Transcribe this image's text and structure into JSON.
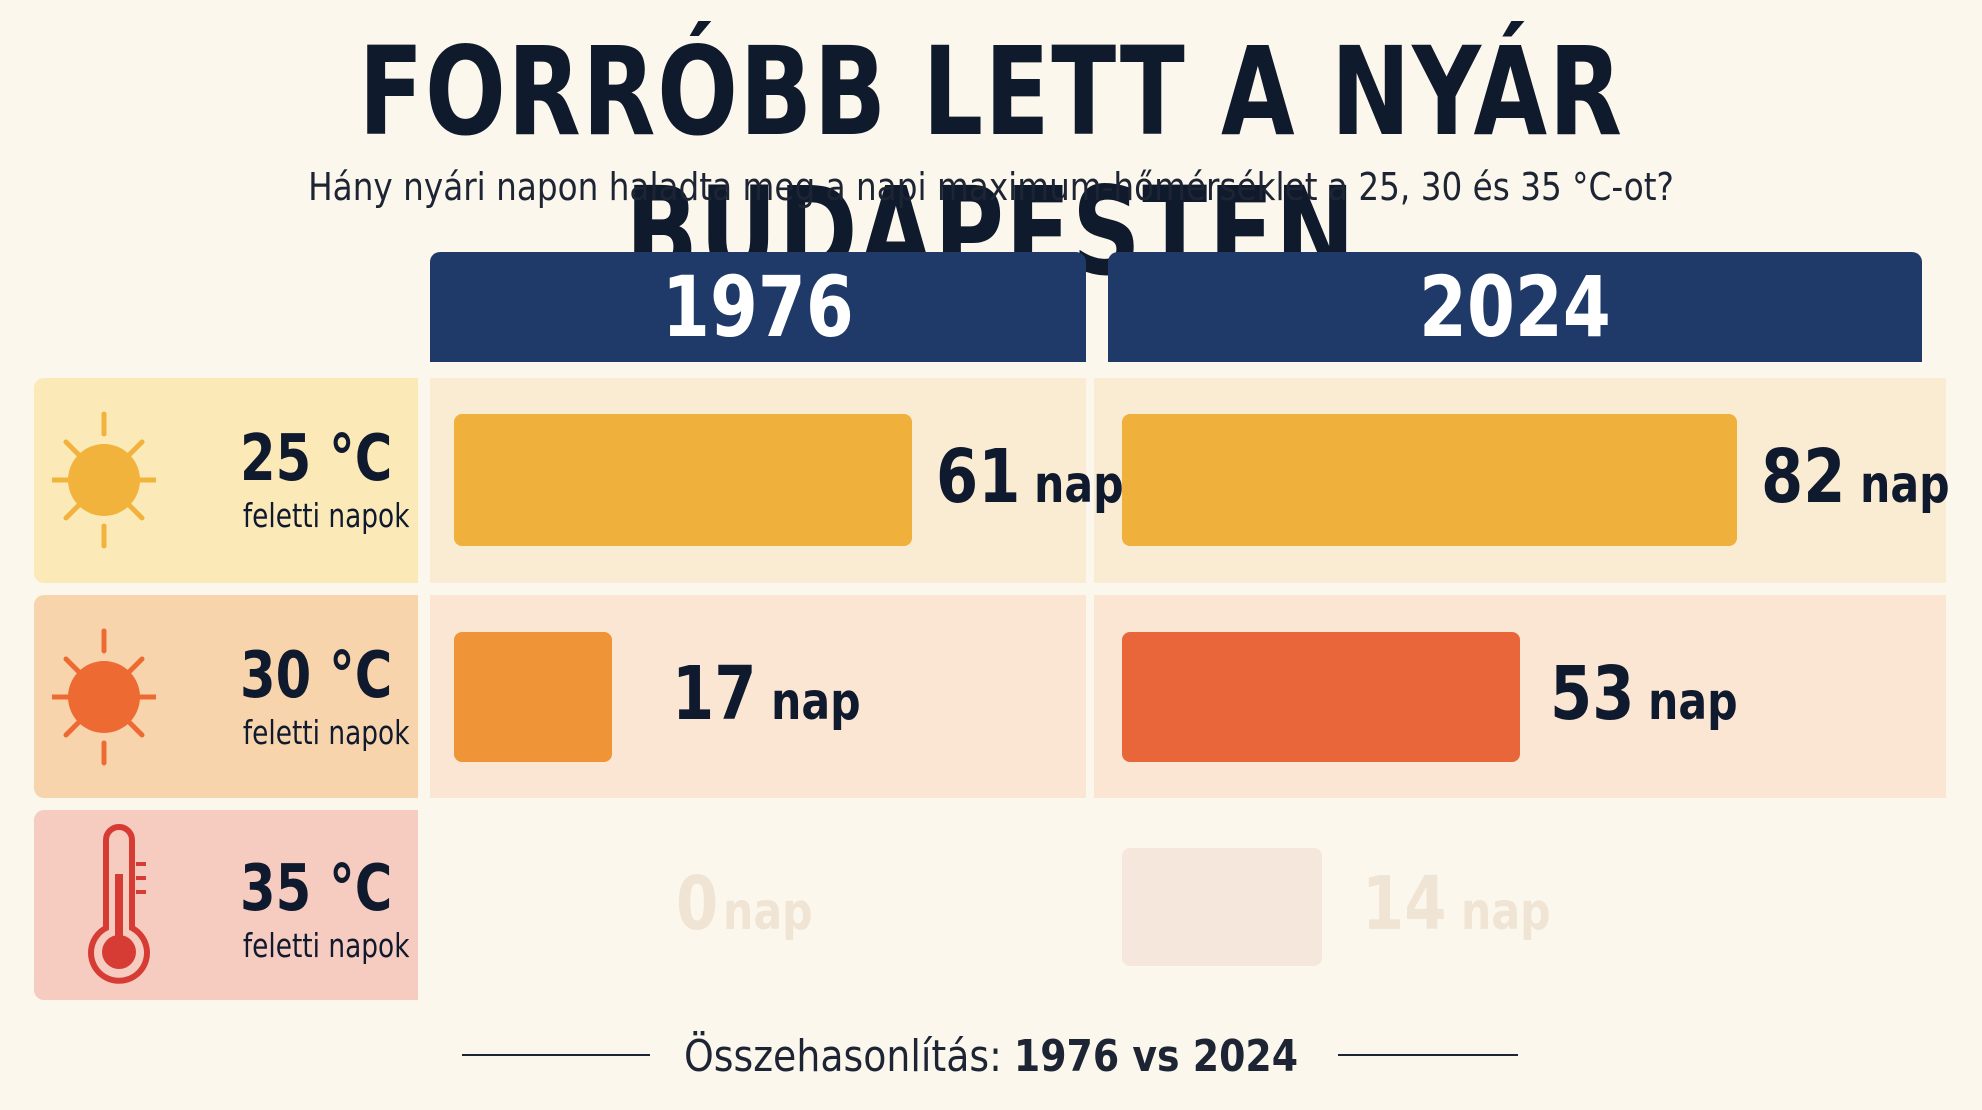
{
  "title": "FORRÓBB LETT A NYÁR BUDAPESTEN",
  "subtitle": "Hány nyári napon haladta meg a napi maximum-hőmérséklet a 25, 30 és 35 °C-ot?",
  "footer": {
    "prefix": "Összehasonlítás: ",
    "emphasis": "1976 vs 2024"
  },
  "chart_data": {
    "type": "bar",
    "title": "FORRÓBB LETT A NYÁR BUDAPESTEN",
    "subtitle": "Hány nyári napon haladta meg a napi maximum-hőmérséklet a 25, 30 és 35 °C-ot?",
    "columns": [
      "1976",
      "2024"
    ],
    "unit": "nap",
    "categories": [
      {
        "temp": "25 °C",
        "sub": "feletti napok",
        "icon": "sun-icon"
      },
      {
        "temp": "30 °C",
        "sub": "feletti napok",
        "icon": "sun-icon"
      },
      {
        "temp": "35 °C",
        "sub": "feletti napok",
        "icon": "thermometer-icon"
      }
    ],
    "series": [
      {
        "name": "1976",
        "values": [
          61,
          17,
          0
        ]
      },
      {
        "name": "2024",
        "values": [
          82,
          53,
          14
        ]
      }
    ],
    "colors": {
      "header": "#1f3a68",
      "row_25_label": "#fbe9b8",
      "row_30_label": "#f7d4ac",
      "row_35_label": "#f6cbc0",
      "bar_25": "#f0b03c",
      "bar_30_1976": "#f09438",
      "bar_30_2024": "#e8663a",
      "bar_35": "#f7ebe0",
      "sun_25": "#f2b33c",
      "sun_30": "#ed6b32",
      "thermo": "#d63c34"
    }
  }
}
